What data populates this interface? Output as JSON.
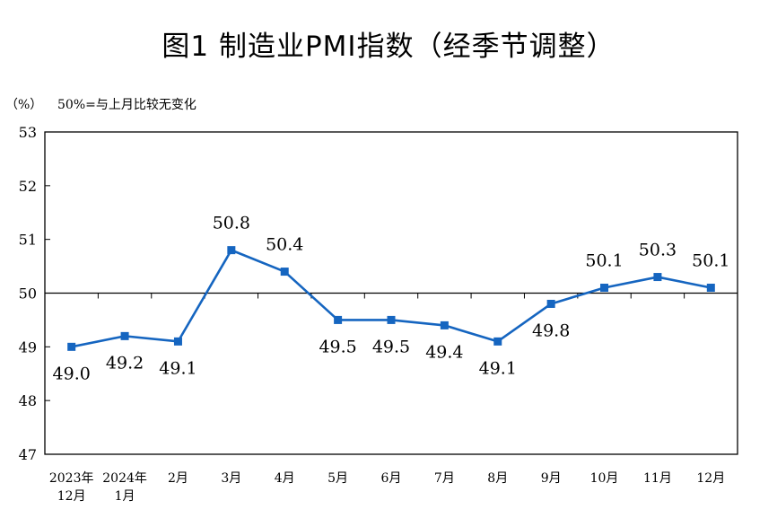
{
  "chart_data": {
    "type": "line",
    "title": "图1  制造业PMI指数（经季节调整）",
    "y_unit": "（%）",
    "note": "50%=与上月比较无变化",
    "ylim": [
      47,
      53
    ],
    "yticks": [
      "53",
      "52",
      "51",
      "50",
      "49",
      "48",
      "47"
    ],
    "reference_line": 50,
    "categories": [
      [
        "2023年",
        "12月"
      ],
      [
        "2024年",
        "1月"
      ],
      [
        "2月"
      ],
      [
        "3月"
      ],
      [
        "4月"
      ],
      [
        "5月"
      ],
      [
        "6月"
      ],
      [
        "7月"
      ],
      [
        "8月"
      ],
      [
        "9月"
      ],
      [
        "10月"
      ],
      [
        "11月"
      ],
      [
        "12月"
      ]
    ],
    "series": [
      {
        "values": [
          49.0,
          49.2,
          49.1,
          50.8,
          50.4,
          49.5,
          49.5,
          49.4,
          49.1,
          49.8,
          50.1,
          50.3,
          50.1
        ],
        "data_labels": [
          "49.0",
          "49.2",
          "49.1",
          "50.8",
          "50.4",
          "49.5",
          "49.5",
          "49.4",
          "49.1",
          "49.8",
          "50.1",
          "50.3",
          "50.1"
        ]
      }
    ],
    "label_positions": [
      "below",
      "below",
      "below",
      "above",
      "above",
      "below",
      "below",
      "below",
      "below",
      "below",
      "above",
      "above",
      "above"
    ],
    "colors": {
      "line": "#1565c0",
      "marker": "#1565c0",
      "axis": "#000000"
    }
  }
}
